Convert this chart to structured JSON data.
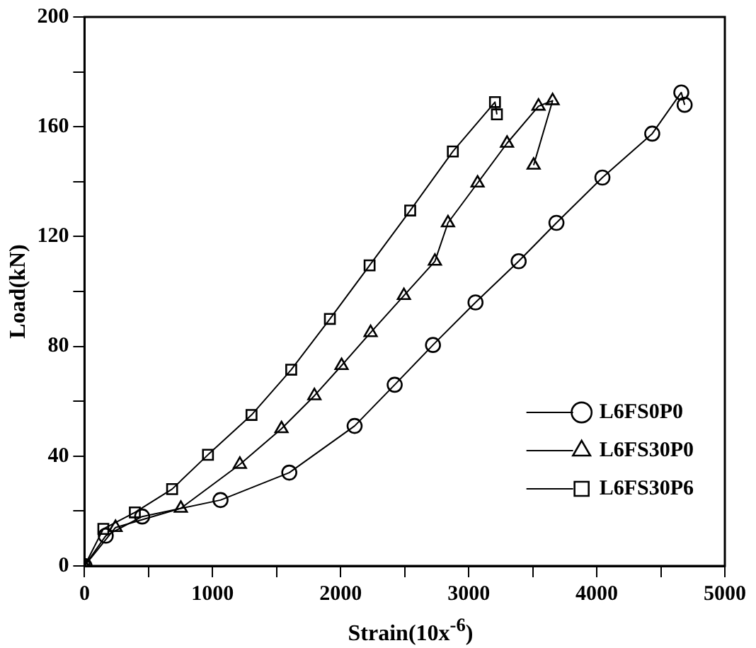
{
  "chart_data": {
    "type": "line",
    "xlabel": "Strain(10x$^{-6}$)",
    "ylabel": "Load(kN)",
    "xlim": [
      0,
      5000
    ],
    "xticks": [
      0,
      {
        "value": 500,
        "label": null
      },
      1000,
      {
        "value": 1500,
        "label": null
      },
      2000,
      {
        "value": 2500,
        "label": null
      },
      3000,
      {
        "value": 3500,
        "label": null
      },
      4000,
      {
        "value": 4500,
        "label": null
      },
      5000
    ],
    "ylim": [
      0,
      200
    ],
    "yticks": [
      0,
      {
        "value": 20,
        "label": null
      },
      40,
      {
        "value": 60,
        "label": null
      },
      80,
      {
        "value": 100,
        "label": null
      },
      120,
      {
        "value": 140,
        "label": null
      },
      160,
      {
        "value": 180,
        "label": null
      },
      200
    ],
    "grid": false,
    "legend": "bottom right",
    "line_style": "solid",
    "series": [
      {
        "name": "L6FS0P0",
        "color": "#000000",
        "marker": "circle",
        "x": [
          0,
          166,
          450,
          1062,
          1599,
          2109,
          2422,
          2721,
          3053,
          3390,
          3685,
          4044,
          4433,
          4660,
          4686
        ],
        "values": [
          0,
          11,
          18,
          24,
          34,
          51,
          66,
          80.5,
          96,
          111,
          125,
          141.5,
          157.5,
          172.5,
          168
        ]
      },
      {
        "name": "L6FS30P0",
        "color": "#000000",
        "marker": "triangle",
        "x": [
          0,
          242,
          752,
          1213,
          1538,
          1795,
          2007,
          2234,
          2494,
          2736,
          2838,
          3069,
          3299,
          3545,
          3655,
          3507
        ],
        "values": [
          0,
          14,
          21,
          37,
          50,
          62,
          73,
          85,
          98.5,
          111,
          125,
          139.5,
          154,
          167.5,
          169.5,
          146
        ]
      },
      {
        "name": "L6FS30P6",
        "color": "#000000",
        "marker": "square",
        "x": [
          0,
          147,
          393,
          684,
          964,
          1304,
          1614,
          1916,
          2226,
          2543,
          2876,
          3205,
          3220
        ],
        "values": [
          0,
          13.5,
          19.5,
          28,
          40.5,
          55,
          71.5,
          90,
          109.5,
          129.5,
          151,
          169,
          164.5
        ]
      }
    ]
  }
}
